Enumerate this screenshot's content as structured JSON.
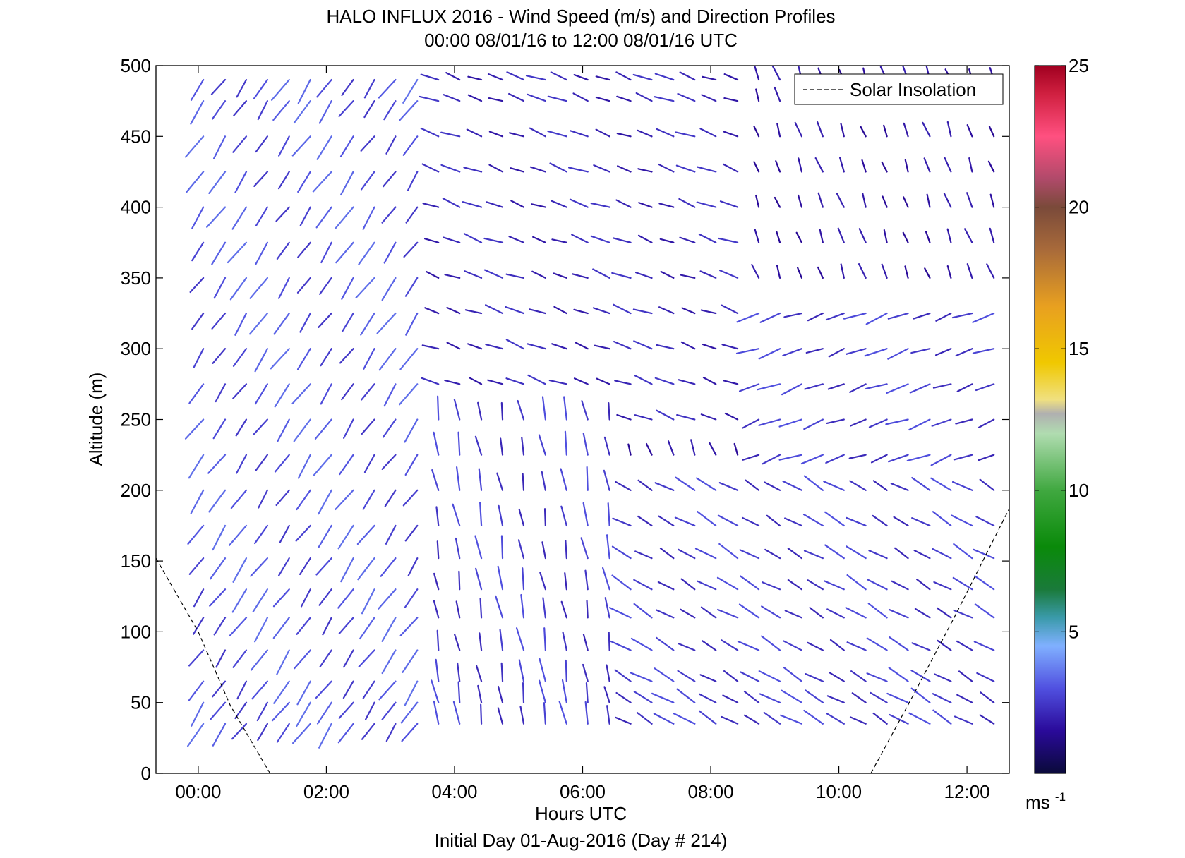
{
  "chart_data": {
    "type": "wind-barb-profile",
    "title": "HALO INFLUX 2016 - Wind Speed (m/s) and Direction Profiles",
    "subtitle": "00:00 08/01/16 to 12:00 08/01/16  UTC",
    "xlabel": "Hours UTC",
    "ylabel": "Altitude (m)",
    "footer": "Initial Day 01-Aug-2016 (Day # 214)",
    "xlim": [
      -0.66,
      12.66
    ],
    "ylim": [
      0,
      500
    ],
    "x_ticks": [
      0,
      2,
      4,
      6,
      8,
      10,
      12
    ],
    "x_tick_labels": [
      "00:00",
      "02:00",
      "04:00",
      "06:00",
      "08:00",
      "10:00",
      "12:00"
    ],
    "y_ticks": [
      0,
      50,
      100,
      150,
      200,
      250,
      300,
      350,
      400,
      450,
      500
    ],
    "y_tick_labels": [
      "0",
      "50",
      "100",
      "150",
      "200",
      "250",
      "300",
      "350",
      "400",
      "450",
      "500"
    ],
    "legend": {
      "entries": [
        "Solar Insolation"
      ],
      "placement": "top-right",
      "style": "dashed"
    },
    "colorbar": {
      "range": [
        0,
        25
      ],
      "ticks": [
        5,
        10,
        15,
        20,
        25
      ],
      "tick_labels": [
        "5",
        "10",
        "15",
        "20",
        "25"
      ],
      "unit_label": "ms",
      "unit_exponent": "-1",
      "stops": [
        {
          "value": 0,
          "color": "#0a0a3a"
        },
        {
          "value": 1.5,
          "color": "#2a0a9a"
        },
        {
          "value": 3,
          "color": "#5050e0"
        },
        {
          "value": 4.5,
          "color": "#80b0ff"
        },
        {
          "value": 5.5,
          "color": "#3a9aaa"
        },
        {
          "value": 6.5,
          "color": "#1a7a3a"
        },
        {
          "value": 8,
          "color": "#0a8a0a"
        },
        {
          "value": 10,
          "color": "#40a840"
        },
        {
          "value": 12,
          "color": "#b0dcb0"
        },
        {
          "value": 12.7,
          "color": "#b0b0b0"
        },
        {
          "value": 13.2,
          "color": "#f0e080"
        },
        {
          "value": 14.5,
          "color": "#f0c800"
        },
        {
          "value": 16.5,
          "color": "#e8a020"
        },
        {
          "value": 18.5,
          "color": "#a86a3a"
        },
        {
          "value": 20,
          "color": "#7a4a3a"
        },
        {
          "value": 21,
          "color": "#b04a6a"
        },
        {
          "value": 22.5,
          "color": "#ff5080"
        },
        {
          "value": 24,
          "color": "#d02040"
        },
        {
          "value": 25,
          "color": "#a00020"
        }
      ]
    },
    "solar_insolation": {
      "left": [
        [
          -0.66,
          152
        ],
        [
          0,
          100
        ],
        [
          0.5,
          48
        ],
        [
          1.12,
          0
        ]
      ],
      "right": [
        [
          10.5,
          0
        ],
        [
          11.1,
          50
        ],
        [
          11.8,
          110
        ],
        [
          12.66,
          187
        ]
      ]
    },
    "profile_times": [
      0.08,
      0.42,
      0.75,
      1.08,
      1.42,
      1.75,
      2.08,
      2.42,
      2.75,
      3.08,
      3.42,
      3.75,
      4.08,
      4.42,
      4.75,
      5.08,
      5.42,
      5.75,
      6.08,
      6.42,
      6.75,
      7.08,
      7.42,
      7.75,
      8.08,
      8.42,
      8.75,
      9.08,
      9.42,
      9.75,
      10.08,
      10.42,
      10.75,
      11.08,
      11.42,
      11.75,
      12.08,
      12.42
    ],
    "profile_altitudes": [
      35,
      50,
      65,
      87,
      110,
      130,
      152,
      175,
      200,
      225,
      250,
      275,
      300,
      325,
      350,
      375,
      400,
      425,
      450,
      475,
      490
    ],
    "wind_regimes": [
      {
        "t_min": 0,
        "t_max": 3.5,
        "z_min": 0,
        "z_max": 500,
        "direction_deg": 325,
        "speed_ms": 3.5
      },
      {
        "t_min": 3.5,
        "t_max": 6.5,
        "z_min": 0,
        "z_max": 250,
        "direction_deg": 190,
        "speed_ms": 3
      },
      {
        "t_min": 6.5,
        "t_max": 12.6,
        "z_min": 0,
        "z_max": 220,
        "direction_deg": 240,
        "speed_ms": 3
      },
      {
        "t_min": 3.5,
        "t_max": 8.5,
        "z_min": 250,
        "z_max": 500,
        "direction_deg": 250,
        "speed_ms": 2.5
      },
      {
        "t_min": 8.5,
        "t_max": 12.6,
        "z_min": 220,
        "z_max": 340,
        "direction_deg": 290,
        "speed_ms": 3
      },
      {
        "t_min": 8.5,
        "t_max": 12.6,
        "z_min": 340,
        "z_max": 500,
        "direction_deg": 200,
        "speed_ms": 2
      }
    ]
  }
}
